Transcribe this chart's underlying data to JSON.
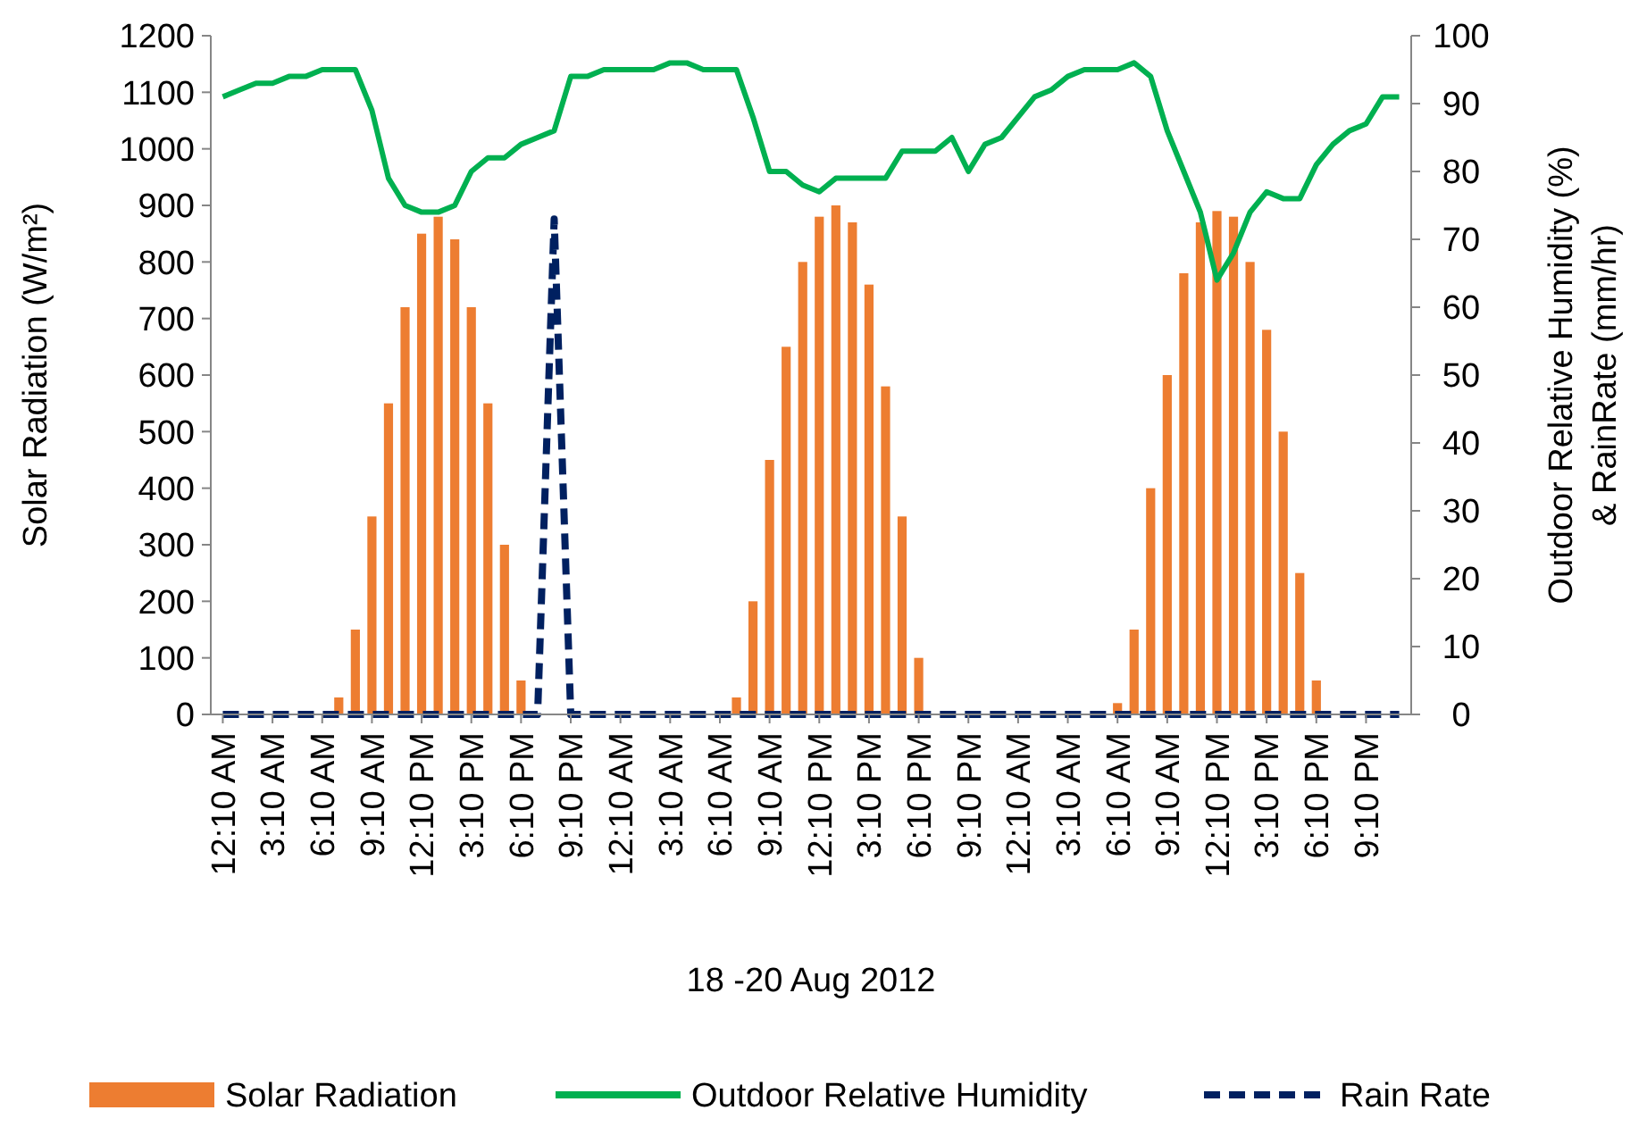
{
  "chart_data": {
    "type": "bar",
    "xlabel": "18 -20 Aug 2012",
    "ylabel": "Solar Radiation (W/m²)",
    "y2label": "Outdoor Relative Humidity (%) & RainRate (mm/hr)",
    "categories": [
      "12:10 AM",
      null,
      null,
      "3:10 AM",
      null,
      null,
      "6:10 AM",
      null,
      null,
      "9:10 AM",
      null,
      null,
      "12:10 PM",
      null,
      null,
      "3:10 PM",
      null,
      null,
      "6:10 PM",
      null,
      null,
      "9:10 PM",
      null,
      null,
      "12:10 AM",
      null,
      null,
      "3:10 AM",
      null,
      null,
      "6:10 AM",
      null,
      null,
      "9:10 AM",
      null,
      null,
      "12:10 PM",
      null,
      null,
      "3:10 PM",
      null,
      null,
      "6:10 PM",
      null,
      null,
      "9:10 PM",
      null,
      null,
      "12:10 AM",
      null,
      null,
      "3:10 AM",
      null,
      null,
      "6:10 AM",
      null,
      null,
      "9:10 AM",
      null,
      null,
      "12:10 PM",
      null,
      null,
      "3:10 PM",
      null,
      null,
      "6:10 PM",
      null,
      null,
      "9:10 PM",
      null,
      null
    ],
    "series": [
      {
        "name": "Solar Radiation",
        "color": "#ed7d31",
        "values": [
          0,
          0,
          0,
          0,
          0,
          0,
          0,
          30,
          150,
          350,
          550,
          720,
          850,
          880,
          840,
          720,
          550,
          300,
          60,
          0,
          0,
          0,
          0,
          0,
          0,
          0,
          0,
          0,
          0,
          0,
          0,
          30,
          200,
          450,
          650,
          800,
          880,
          900,
          870,
          760,
          580,
          350,
          100,
          0,
          0,
          0,
          0,
          0,
          0,
          0,
          0,
          0,
          0,
          0,
          20,
          150,
          400,
          600,
          780,
          870,
          890,
          880,
          800,
          680,
          500,
          250,
          60,
          0,
          0,
          0,
          0,
          0
        ]
      },
      {
        "name": "Outdoor Relative Humidity",
        "type": "line",
        "axis": "y2",
        "color": "#00b050",
        "line_style": "solid",
        "values": [
          91,
          92,
          93,
          93,
          94,
          94,
          95,
          95,
          95,
          89,
          79,
          75,
          74,
          74,
          75,
          80,
          82,
          82,
          84,
          85,
          86,
          94,
          94,
          95,
          95,
          95,
          95,
          96,
          96,
          95,
          95,
          95,
          88,
          80,
          80,
          78,
          77,
          79,
          79,
          79,
          79,
          83,
          83,
          83,
          85,
          80,
          84,
          85,
          88,
          91,
          92,
          94,
          95,
          95,
          95,
          96,
          94,
          86,
          80,
          74,
          64,
          68,
          74,
          77,
          76,
          76,
          81,
          84,
          86,
          87,
          91,
          91
        ]
      },
      {
        "name": "Rain Rate",
        "type": "line",
        "axis": "y2",
        "color": "#002060",
        "line_style": "dashed",
        "values": [
          0,
          0,
          0,
          0,
          0,
          0,
          0,
          0,
          0,
          0,
          0,
          0,
          0,
          0,
          0,
          0,
          0,
          0,
          0,
          0,
          73,
          0,
          0,
          0,
          0,
          0,
          0,
          0,
          0,
          0,
          0,
          0,
          0,
          0,
          0,
          0,
          0,
          0,
          0,
          0,
          0,
          0,
          0,
          0,
          0,
          0,
          0,
          0,
          0,
          0,
          0,
          0,
          0,
          0,
          0,
          0,
          0,
          0,
          0,
          0,
          0,
          0,
          0,
          0,
          0,
          0,
          0,
          0,
          0,
          0,
          0,
          0
        ]
      }
    ],
    "ylim": [
      0,
      1200
    ],
    "yticks": [
      0,
      100,
      200,
      300,
      400,
      500,
      600,
      700,
      800,
      900,
      1000,
      1100,
      1200
    ],
    "y2lim": [
      0,
      100
    ],
    "y2ticks": [
      0,
      10,
      20,
      30,
      40,
      50,
      60,
      70,
      80,
      90,
      100
    ],
    "grid": false,
    "legend": "bottom"
  }
}
